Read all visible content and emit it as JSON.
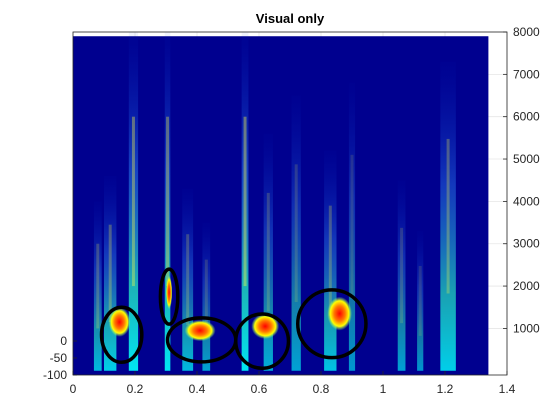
{
  "chart_data": {
    "type": "heatmap",
    "title": "Visual only",
    "xlabel": "",
    "ylabel": "",
    "colormap": "jet",
    "grid": true,
    "x_axis": {
      "range": [
        0,
        1.4
      ],
      "ticks": [
        "0",
        "0.2",
        "0.4",
        "0.6",
        "0.8",
        "1",
        "1.2",
        "1.4"
      ]
    },
    "y_axis_right": {
      "range": [
        -100,
        8000
      ],
      "ticks": [
        "1000",
        "2000",
        "3000",
        "4000",
        "5000",
        "6000",
        "7000",
        "8000"
      ]
    },
    "y_axis_left": {
      "ticks": [
        "0",
        "-50",
        "-100"
      ]
    },
    "data_extent": {
      "x": [
        0,
        1.34
      ],
      "y": [
        -100,
        7900
      ]
    },
    "bands": [
      {
        "x": 0.08,
        "w": 0.025,
        "ymax": 4000,
        "level": 0.35
      },
      {
        "x": 0.12,
        "w": 0.04,
        "ymax": 4600,
        "level": 0.45
      },
      {
        "x": 0.195,
        "w": 0.03,
        "ymax": 8000,
        "level": 0.6
      },
      {
        "x": 0.305,
        "w": 0.018,
        "ymax": 8000,
        "level": 0.55
      },
      {
        "x": 0.37,
        "w": 0.035,
        "ymax": 4300,
        "level": 0.35
      },
      {
        "x": 0.43,
        "w": 0.025,
        "ymax": 3500,
        "level": 0.25
      },
      {
        "x": 0.555,
        "w": 0.022,
        "ymax": 8000,
        "level": 0.65
      },
      {
        "x": 0.63,
        "w": 0.03,
        "ymax": 5600,
        "level": 0.3
      },
      {
        "x": 0.72,
        "w": 0.03,
        "ymax": 6500,
        "level": 0.25
      },
      {
        "x": 0.83,
        "w": 0.04,
        "ymax": 5200,
        "level": 0.4
      },
      {
        "x": 0.9,
        "w": 0.02,
        "ymax": 6800,
        "level": 0.2
      },
      {
        "x": 1.06,
        "w": 0.025,
        "ymax": 4500,
        "level": 0.25
      },
      {
        "x": 1.12,
        "w": 0.02,
        "ymax": 3300,
        "level": 0.2
      },
      {
        "x": 1.21,
        "w": 0.05,
        "ymax": 7300,
        "level": 0.45
      }
    ],
    "hotspots": [
      {
        "x": 0.15,
        "y": 1150,
        "rx": 0.035,
        "ry": 350
      },
      {
        "x": 0.31,
        "y": 1850,
        "rx": 0.01,
        "ry": 400
      },
      {
        "x": 0.41,
        "y": 950,
        "rx": 0.05,
        "ry": 250
      },
      {
        "x": 0.62,
        "y": 1050,
        "rx": 0.045,
        "ry": 300
      },
      {
        "x": 0.86,
        "y": 1350,
        "rx": 0.04,
        "ry": 400
      }
    ],
    "annotations": [
      {
        "shape": "ellipse",
        "cx": 0.157,
        "cy": 850,
        "rx": 0.065,
        "ry": 650
      },
      {
        "shape": "ellipse",
        "cx": 0.31,
        "cy": 1750,
        "rx": 0.028,
        "ry": 650
      },
      {
        "shape": "ellipse",
        "cx": 0.415,
        "cy": 730,
        "rx": 0.11,
        "ry": 520
      },
      {
        "shape": "ellipse",
        "cx": 0.61,
        "cy": 700,
        "rx": 0.085,
        "ry": 640
      },
      {
        "shape": "ellipse",
        "cx": 0.835,
        "cy": 1110,
        "rx": 0.11,
        "ry": 800
      }
    ]
  }
}
